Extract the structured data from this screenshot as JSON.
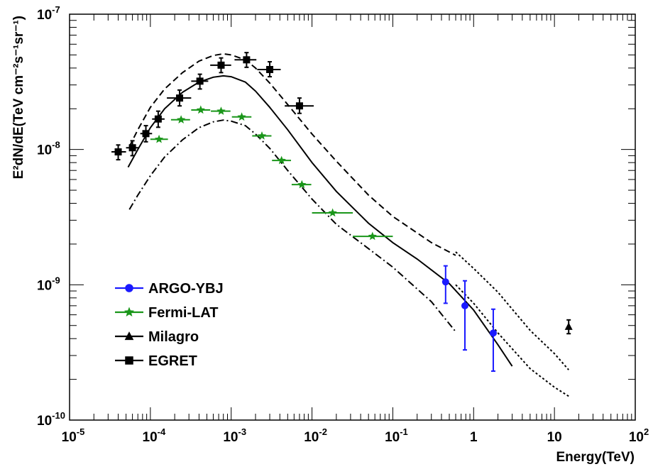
{
  "chart_data": {
    "type": "scatter",
    "title": "",
    "xlabel": "Energy(TeV)",
    "ylabel": "E²dN/dE(TeV cm⁻²s⁻¹sr⁻¹)",
    "x_scale": "log",
    "y_scale": "log",
    "xlim": [
      1e-05,
      100
    ],
    "ylim": [
      1e-10,
      1e-07
    ],
    "grid": false,
    "legend_position": "bottom-left",
    "x_tick_labels": [
      {
        "base": "10",
        "exp": "-5",
        "value": 1e-05
      },
      {
        "base": "10",
        "exp": "-4",
        "value": 0.0001
      },
      {
        "base": "10",
        "exp": "-3",
        "value": 0.001
      },
      {
        "base": "10",
        "exp": "-2",
        "value": 0.01
      },
      {
        "base": "10",
        "exp": "-1",
        "value": 0.1
      },
      {
        "base": "1",
        "exp": "",
        "value": 1
      },
      {
        "base": "10",
        "exp": "",
        "value": 10
      },
      {
        "base": "10",
        "exp": "2",
        "value": 100
      }
    ],
    "y_tick_labels": [
      {
        "base": "10",
        "exp": "-10",
        "value": 1e-10
      },
      {
        "base": "10",
        "exp": "-9",
        "value": 1e-09
      },
      {
        "base": "10",
        "exp": "-8",
        "value": 1e-08
      },
      {
        "base": "10",
        "exp": "-7",
        "value": 1e-07
      }
    ],
    "series": [
      {
        "name": "ARGO-YBJ",
        "color": "#1a1aff",
        "marker": "circle",
        "points": [
          {
            "x": 0.45,
            "y": 1.05e-09,
            "ylo": 7.3e-10,
            "yhi": 1.38e-09
          },
          {
            "x": 0.78,
            "y": 7e-10,
            "ylo": 3.3e-10,
            "yhi": 1.07e-09
          },
          {
            "x": 1.75,
            "y": 4.4e-10,
            "ylo": 2.3e-10,
            "yhi": 6.6e-10
          }
        ]
      },
      {
        "name": "Fermi-LAT",
        "color": "#1a961a",
        "marker": "star",
        "points": [
          {
            "x": 0.000128,
            "y": 1.19e-08,
            "xlo": 0.0001,
            "xhi": 0.000165
          },
          {
            "x": 0.00024,
            "y": 1.66e-08,
            "xlo": 0.00018,
            "xhi": 0.00031
          },
          {
            "x": 0.00042,
            "y": 1.96e-08,
            "xlo": 0.00032,
            "xhi": 0.00055
          },
          {
            "x": 0.00075,
            "y": 1.92e-08,
            "xlo": 0.00056,
            "xhi": 0.00098
          },
          {
            "x": 0.00135,
            "y": 1.74e-08,
            "xlo": 0.00102,
            "xhi": 0.00178
          },
          {
            "x": 0.0024,
            "y": 1.26e-08,
            "xlo": 0.00182,
            "xhi": 0.00315
          },
          {
            "x": 0.0042,
            "y": 8.3e-09,
            "xlo": 0.0032,
            "xhi": 0.0055
          },
          {
            "x": 0.0075,
            "y": 5.5e-09,
            "xlo": 0.0056,
            "xhi": 0.0098
          },
          {
            "x": 0.018,
            "y": 3.4e-09,
            "xlo": 0.01,
            "xhi": 0.032
          },
          {
            "x": 0.056,
            "y": 2.28e-09,
            "xlo": 0.032,
            "xhi": 0.1
          }
        ]
      },
      {
        "name": "Milagro",
        "color": "#000000",
        "marker": "triangle",
        "points": [
          {
            "x": 15,
            "y": 4.9e-10,
            "ylo": 4.35e-10,
            "yhi": 5.5e-10
          }
        ]
      },
      {
        "name": "EGRET",
        "color": "#000000",
        "marker": "square",
        "points": [
          {
            "x": 4e-05,
            "y": 9.6e-09,
            "xlo": 3.3e-05,
            "xhi": 5e-05,
            "ylo": 8.4e-09,
            "yhi": 1.08e-08
          },
          {
            "x": 6e-05,
            "y": 1.03e-08,
            "xlo": 5e-05,
            "xhi": 7.1e-05,
            "ylo": 9e-09,
            "yhi": 1.16e-08
          },
          {
            "x": 8.8e-05,
            "y": 1.31e-08,
            "xlo": 7.5e-05,
            "xhi": 0.000105,
            "ylo": 1.14e-08,
            "yhi": 1.5e-08
          },
          {
            "x": 0.000125,
            "y": 1.68e-08,
            "xlo": 0.000105,
            "xhi": 0.00015,
            "ylo": 1.46e-08,
            "yhi": 1.92e-08
          },
          {
            "x": 0.00023,
            "y": 2.4e-08,
            "xlo": 0.00016,
            "xhi": 0.00032,
            "ylo": 2.1e-08,
            "yhi": 2.75e-08
          },
          {
            "x": 0.00041,
            "y": 3.2e-08,
            "xlo": 0.00032,
            "xhi": 0.00052,
            "ylo": 2.8e-08,
            "yhi": 3.6e-08
          },
          {
            "x": 0.00075,
            "y": 4.2e-08,
            "xlo": 0.00055,
            "xhi": 0.001,
            "ylo": 3.7e-08,
            "yhi": 4.75e-08
          },
          {
            "x": 0.00155,
            "y": 4.6e-08,
            "xlo": 0.0011,
            "xhi": 0.00205,
            "ylo": 4.05e-08,
            "yhi": 5.2e-08
          },
          {
            "x": 0.003,
            "y": 3.9e-08,
            "xlo": 0.0021,
            "xhi": 0.0041,
            "ylo": 3.45e-08,
            "yhi": 4.45e-08
          },
          {
            "x": 0.007,
            "y": 2.1e-08,
            "xlo": 0.0046,
            "xhi": 0.0105,
            "ylo": 1.85e-08,
            "yhi": 2.4e-08
          }
        ]
      }
    ],
    "model_curves": [
      {
        "style": "solid",
        "points": [
          [
            5.3e-05,
            7.4e-09
          ],
          [
            7e-05,
            1e-08
          ],
          [
            0.0001,
            1.45e-08
          ],
          [
            0.00015,
            2e-08
          ],
          [
            0.00025,
            2.65e-08
          ],
          [
            0.0004,
            3.15e-08
          ],
          [
            0.0006,
            3.42e-08
          ],
          [
            0.0008,
            3.5e-08
          ],
          [
            0.001,
            3.45e-08
          ],
          [
            0.0015,
            3.15e-08
          ],
          [
            0.002,
            2.7e-08
          ],
          [
            0.003,
            2.05e-08
          ],
          [
            0.005,
            1.4e-08
          ],
          [
            0.01,
            8e-09
          ],
          [
            0.02,
            4.9e-09
          ],
          [
            0.05,
            2.85e-09
          ],
          [
            0.1,
            2.05e-09
          ],
          [
            0.2,
            1.55e-09
          ],
          [
            0.5,
            1.02e-09
          ],
          [
            1.0,
            6.5e-10
          ],
          [
            2.0,
            3.6e-10
          ],
          [
            3.0,
            2.5e-10
          ]
        ]
      },
      {
        "style": "dashed",
        "points": [
          [
            5.5e-05,
            1.05e-08
          ],
          [
            7e-05,
            1.4e-08
          ],
          [
            0.0001,
            2.05e-08
          ],
          [
            0.00015,
            2.8e-08
          ],
          [
            0.00025,
            3.7e-08
          ],
          [
            0.0004,
            4.5e-08
          ],
          [
            0.0006,
            4.95e-08
          ],
          [
            0.0008,
            5.1e-08
          ],
          [
            0.001,
            5e-08
          ],
          [
            0.0015,
            4.6e-08
          ],
          [
            0.002,
            4e-08
          ],
          [
            0.003,
            3.1e-08
          ],
          [
            0.005,
            2.15e-08
          ],
          [
            0.01,
            1.3e-08
          ],
          [
            0.02,
            8.2e-09
          ],
          [
            0.05,
            4.6e-09
          ],
          [
            0.1,
            3.2e-09
          ],
          [
            0.3,
            2.05e-09
          ],
          [
            0.6,
            1.65e-09
          ]
        ]
      },
      {
        "style": "dashdot",
        "points": [
          [
            5.5e-05,
            3.6e-09
          ],
          [
            7e-05,
            4.6e-09
          ],
          [
            0.0001,
            6.4e-09
          ],
          [
            0.00015,
            8.8e-09
          ],
          [
            0.00025,
            1.18e-08
          ],
          [
            0.0004,
            1.45e-08
          ],
          [
            0.0006,
            1.6e-08
          ],
          [
            0.0008,
            1.65e-08
          ],
          [
            0.001,
            1.62e-08
          ],
          [
            0.0015,
            1.5e-08
          ],
          [
            0.002,
            1.3e-08
          ],
          [
            0.003,
            1.02e-08
          ],
          [
            0.005,
            7e-09
          ],
          [
            0.01,
            4.3e-09
          ],
          [
            0.02,
            2.8e-09
          ],
          [
            0.05,
            1.85e-09
          ],
          [
            0.1,
            1.35e-09
          ],
          [
            0.3,
            7.5e-10
          ],
          [
            0.6,
            4.5e-10
          ]
        ]
      },
      {
        "style": "dotted",
        "points": [
          [
            0.6,
            1.75e-09
          ],
          [
            1.0,
            1.32e-09
          ],
          [
            2.0,
            8.8e-10
          ],
          [
            5.0,
            4.6e-10
          ],
          [
            10.0,
            3.1e-10
          ],
          [
            15.0,
            2.35e-10
          ]
        ]
      },
      {
        "style": "dotted",
        "points": [
          [
            0.6,
            1e-09
          ],
          [
            1.0,
            7.3e-10
          ],
          [
            2.0,
            4.4e-10
          ],
          [
            5.0,
            2.4e-10
          ],
          [
            10.0,
            1.75e-10
          ],
          [
            15.0,
            1.5e-10
          ]
        ]
      }
    ]
  }
}
